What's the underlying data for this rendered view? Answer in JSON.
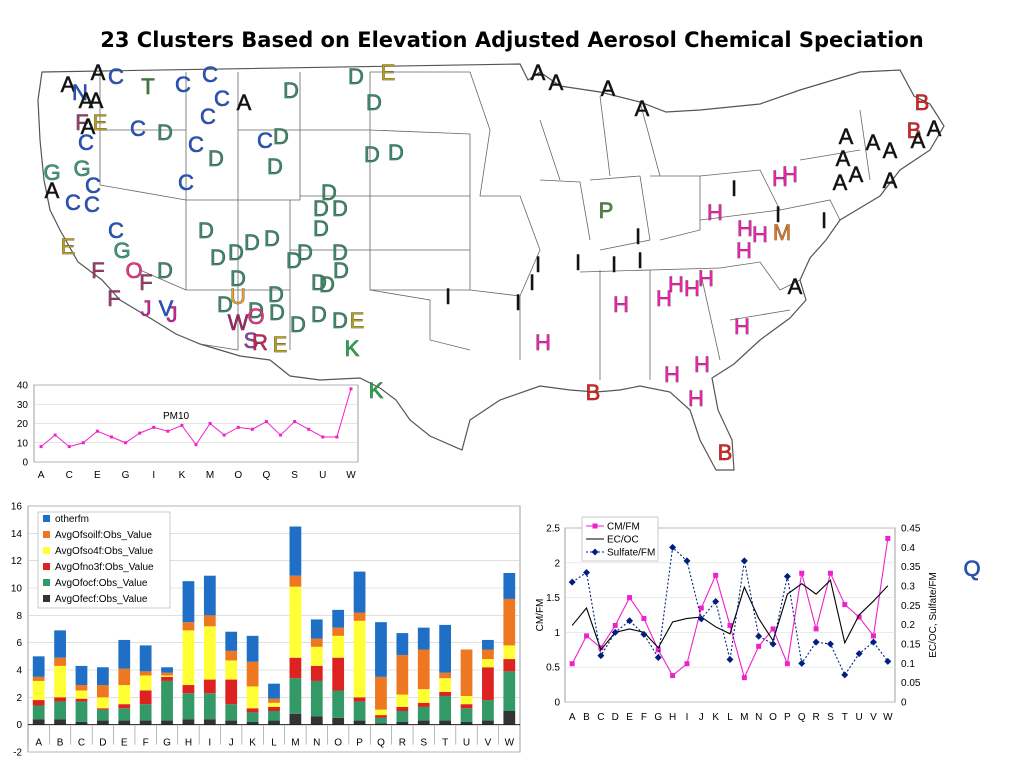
{
  "title": "23 Clusters Based on Elevation Adjusted Aerosol Chemical Speciation",
  "colors": {
    "A": "#111111",
    "B": "#dd2222",
    "C": "#2255cc",
    "D": "#3a8a6a",
    "E": "#b5a020",
    "F": "#9a3a6a",
    "G": "#3a9a7a",
    "H": "#ee22aa",
    "I": "#111111",
    "J": "#cc2299",
    "K": "#22aa44",
    "M": "#dd7722",
    "N": "#2255cc",
    "O": "#ee3388",
    "P": "#4a8a3a",
    "Q": "#2255cc",
    "R": "#cc2255",
    "S": "#8844aa",
    "T": "#3a7a3a",
    "U": "#e8a030",
    "V": "#2255cc",
    "W": "#aa2266"
  },
  "map_labels": [
    {
      "t": "A",
      "x": 68,
      "y": 92
    },
    {
      "t": "A",
      "x": 98,
      "y": 80
    },
    {
      "t": "C",
      "x": 116,
      "y": 84
    },
    {
      "t": "N",
      "x": 80,
      "y": 100
    },
    {
      "t": "A",
      "x": 86,
      "y": 108
    },
    {
      "t": "A",
      "x": 96,
      "y": 108
    },
    {
      "t": "T",
      "x": 148,
      "y": 94
    },
    {
      "t": "C",
      "x": 183,
      "y": 92
    },
    {
      "t": "C",
      "x": 210,
      "y": 82
    },
    {
      "t": "C",
      "x": 222,
      "y": 106
    },
    {
      "t": "A",
      "x": 244,
      "y": 110
    },
    {
      "t": "D",
      "x": 291,
      "y": 98
    },
    {
      "t": "D",
      "x": 356,
      "y": 84
    },
    {
      "t": "E",
      "x": 388,
      "y": 80
    },
    {
      "t": "D",
      "x": 374,
      "y": 110
    },
    {
      "t": "F",
      "x": 82,
      "y": 130
    },
    {
      "t": "E",
      "x": 100,
      "y": 130
    },
    {
      "t": "A",
      "x": 88,
      "y": 134
    },
    {
      "t": "C",
      "x": 86,
      "y": 150
    },
    {
      "t": "C",
      "x": 138,
      "y": 136
    },
    {
      "t": "D",
      "x": 165,
      "y": 140
    },
    {
      "t": "C",
      "x": 208,
      "y": 124
    },
    {
      "t": "C",
      "x": 196,
      "y": 152
    },
    {
      "t": "D",
      "x": 216,
      "y": 166
    },
    {
      "t": "C",
      "x": 265,
      "y": 148
    },
    {
      "t": "D",
      "x": 281,
      "y": 144
    },
    {
      "t": "D",
      "x": 275,
      "y": 174
    },
    {
      "t": "D",
      "x": 372,
      "y": 162
    },
    {
      "t": "D",
      "x": 396,
      "y": 160
    },
    {
      "t": "G",
      "x": 52,
      "y": 180
    },
    {
      "t": "G",
      "x": 82,
      "y": 176
    },
    {
      "t": "C",
      "x": 93,
      "y": 193
    },
    {
      "t": "A",
      "x": 52,
      "y": 198
    },
    {
      "t": "C",
      "x": 73,
      "y": 210
    },
    {
      "t": "C",
      "x": 92,
      "y": 212
    },
    {
      "t": "C",
      "x": 186,
      "y": 190
    },
    {
      "t": "D",
      "x": 329,
      "y": 200
    },
    {
      "t": "D",
      "x": 321,
      "y": 216
    },
    {
      "t": "D",
      "x": 340,
      "y": 216
    },
    {
      "t": "C",
      "x": 116,
      "y": 238
    },
    {
      "t": "G",
      "x": 122,
      "y": 258
    },
    {
      "t": "D",
      "x": 206,
      "y": 238
    },
    {
      "t": "D",
      "x": 321,
      "y": 236
    },
    {
      "t": "E",
      "x": 68,
      "y": 254
    },
    {
      "t": "D",
      "x": 236,
      "y": 260
    },
    {
      "t": "D",
      "x": 252,
      "y": 250
    },
    {
      "t": "D",
      "x": 272,
      "y": 246
    },
    {
      "t": "D",
      "x": 218,
      "y": 265
    },
    {
      "t": "D",
      "x": 305,
      "y": 260
    },
    {
      "t": "D",
      "x": 294,
      "y": 268
    },
    {
      "t": "D",
      "x": 340,
      "y": 260
    },
    {
      "t": "F",
      "x": 98,
      "y": 278
    },
    {
      "t": "O",
      "x": 134,
      "y": 278
    },
    {
      "t": "D",
      "x": 165,
      "y": 278
    },
    {
      "t": "D",
      "x": 238,
      "y": 286
    },
    {
      "t": "D",
      "x": 319,
      "y": 290
    },
    {
      "t": "D",
      "x": 341,
      "y": 278
    },
    {
      "t": "D",
      "x": 327,
      "y": 292
    },
    {
      "t": "F",
      "x": 146,
      "y": 290
    },
    {
      "t": "U",
      "x": 238,
      "y": 304
    },
    {
      "t": "D",
      "x": 225,
      "y": 312
    },
    {
      "t": "D",
      "x": 256,
      "y": 318
    },
    {
      "t": "D",
      "x": 276,
      "y": 302
    },
    {
      "t": "F",
      "x": 114,
      "y": 306
    },
    {
      "t": "J",
      "x": 146,
      "y": 316
    },
    {
      "t": "V",
      "x": 166,
      "y": 316
    },
    {
      "t": "J",
      "x": 172,
      "y": 322
    },
    {
      "t": "D",
      "x": 277,
      "y": 320
    },
    {
      "t": "D",
      "x": 319,
      "y": 322
    },
    {
      "t": "W",
      "x": 238,
      "y": 330
    },
    {
      "t": "O",
      "x": 256,
      "y": 324
    },
    {
      "t": "D",
      "x": 298,
      "y": 332
    },
    {
      "t": "D",
      "x": 340,
      "y": 328
    },
    {
      "t": "E",
      "x": 357,
      "y": 328
    },
    {
      "t": "S",
      "x": 251,
      "y": 348
    },
    {
      "t": "R",
      "x": 260,
      "y": 350
    },
    {
      "t": "E",
      "x": 280,
      "y": 352
    },
    {
      "t": "K",
      "x": 352,
      "y": 356
    },
    {
      "t": "K",
      "x": 376,
      "y": 398
    },
    {
      "t": "A",
      "x": 538,
      "y": 80
    },
    {
      "t": "A",
      "x": 556,
      "y": 90
    },
    {
      "t": "A",
      "x": 608,
      "y": 96
    },
    {
      "t": "A",
      "x": 642,
      "y": 116
    },
    {
      "t": "B",
      "x": 922,
      "y": 110
    },
    {
      "t": "B",
      "x": 914,
      "y": 138
    },
    {
      "t": "A",
      "x": 934,
      "y": 136
    },
    {
      "t": "A",
      "x": 846,
      "y": 144
    },
    {
      "t": "A",
      "x": 873,
      "y": 150
    },
    {
      "t": "A",
      "x": 890,
      "y": 158
    },
    {
      "t": "A",
      "x": 918,
      "y": 148
    },
    {
      "t": "A",
      "x": 843,
      "y": 166
    },
    {
      "t": "A",
      "x": 856,
      "y": 182
    },
    {
      "t": "A",
      "x": 840,
      "y": 190
    },
    {
      "t": "A",
      "x": 890,
      "y": 188
    },
    {
      "t": "H",
      "x": 780,
      "y": 186
    },
    {
      "t": "H",
      "x": 790,
      "y": 182
    },
    {
      "t": "I",
      "x": 734,
      "y": 196
    },
    {
      "t": "P",
      "x": 606,
      "y": 218
    },
    {
      "t": "H",
      "x": 715,
      "y": 220
    },
    {
      "t": "I",
      "x": 778,
      "y": 222
    },
    {
      "t": "I",
      "x": 824,
      "y": 228
    },
    {
      "t": "H",
      "x": 745,
      "y": 236
    },
    {
      "t": "H",
      "x": 760,
      "y": 242
    },
    {
      "t": "M",
      "x": 782,
      "y": 240
    },
    {
      "t": "H",
      "x": 744,
      "y": 258
    },
    {
      "t": "I",
      "x": 638,
      "y": 244
    },
    {
      "t": "I",
      "x": 538,
      "y": 272
    },
    {
      "t": "I",
      "x": 578,
      "y": 270
    },
    {
      "t": "I",
      "x": 614,
      "y": 272
    },
    {
      "t": "I",
      "x": 640,
      "y": 268
    },
    {
      "t": "I",
      "x": 532,
      "y": 290
    },
    {
      "t": "I",
      "x": 448,
      "y": 304
    },
    {
      "t": "I",
      "x": 518,
      "y": 310
    },
    {
      "t": "H",
      "x": 706,
      "y": 286
    },
    {
      "t": "H",
      "x": 676,
      "y": 292
    },
    {
      "t": "H",
      "x": 692,
      "y": 296
    },
    {
      "t": "A",
      "x": 795,
      "y": 294
    },
    {
      "t": "H",
      "x": 664,
      "y": 306
    },
    {
      "t": "H",
      "x": 621,
      "y": 312
    },
    {
      "t": "H",
      "x": 742,
      "y": 334
    },
    {
      "t": "H",
      "x": 543,
      "y": 350
    },
    {
      "t": "H",
      "x": 702,
      "y": 372
    },
    {
      "t": "H",
      "x": 672,
      "y": 382
    },
    {
      "t": "B",
      "x": 593,
      "y": 400
    },
    {
      "t": "H",
      "x": 696,
      "y": 406
    },
    {
      "t": "B",
      "x": 725,
      "y": 460
    },
    {
      "t": "Q",
      "x": 972,
      "y": 576
    }
  ],
  "pm10": {
    "label": "PM10",
    "y_ticks": [
      "0",
      "10",
      "20",
      "30",
      "40"
    ],
    "x_ticks": [
      "A",
      "C",
      "E",
      "G",
      "I",
      "K",
      "M",
      "O",
      "Q",
      "S",
      "U",
      "W"
    ]
  },
  "stack": {
    "y_ticks": [
      "-2",
      "0",
      "2",
      "4",
      "6",
      "8",
      "10",
      "12",
      "14",
      "16"
    ]
  },
  "ratio": {
    "left_axis_title": "CM/FM",
    "right_axis_title": "EC/OC, Sulfate/FM",
    "left_ticks": [
      "0",
      "0.5",
      "1",
      "1.5",
      "2",
      "2.5"
    ],
    "right_ticks": [
      "0",
      "0.05",
      "0.1",
      "0.15",
      "0.2",
      "0.25",
      "0.3",
      "0.35",
      "0.4",
      "0.45"
    ]
  },
  "chart_data": [
    {
      "type": "line",
      "title": "PM10",
      "x": [
        "A",
        "B",
        "C",
        "D",
        "E",
        "F",
        "G",
        "H",
        "I",
        "J",
        "K",
        "L",
        "M",
        "N",
        "O",
        "P",
        "Q",
        "R",
        "S",
        "T",
        "U",
        "V",
        "W"
      ],
      "ylim": [
        0,
        40
      ],
      "series": [
        {
          "name": "PM10",
          "color": "#ee22cc",
          "values": [
            8,
            14,
            8,
            10,
            16,
            13,
            10,
            15,
            18,
            16,
            19,
            9,
            20,
            14,
            18,
            17,
            21,
            14,
            21,
            17,
            13,
            13,
            38
          ]
        }
      ]
    },
    {
      "type": "bar",
      "stacked": true,
      "categories": [
        "A",
        "B",
        "C",
        "D",
        "E",
        "F",
        "G",
        "H",
        "I",
        "J",
        "K",
        "L",
        "M",
        "N",
        "O",
        "P",
        "Q",
        "R",
        "S",
        "T",
        "U",
        "V",
        "W"
      ],
      "ylim": [
        -2,
        16
      ],
      "legend_position": "top-left",
      "series": [
        {
          "name": "AvgOfecf:Obs_Value",
          "color": "#333333",
          "values": [
            0.4,
            0.4,
            0.2,
            0.3,
            0.3,
            0.3,
            0.3,
            0.4,
            0.4,
            0.3,
            0.2,
            0.3,
            0.8,
            0.6,
            0.5,
            0.3,
            0.1,
            0.2,
            0.3,
            0.3,
            0.2,
            0.3,
            1.0
          ]
        },
        {
          "name": "AvgOfocf:Obs_Value",
          "color": "#339966",
          "values": [
            1.0,
            1.3,
            1.5,
            0.8,
            0.9,
            1.2,
            2.9,
            1.9,
            1.9,
            1.2,
            0.7,
            0.7,
            2.6,
            2.6,
            2.0,
            1.4,
            0.4,
            0.8,
            1.0,
            1.8,
            1.0,
            1.5,
            2.9
          ]
        },
        {
          "name": "AvgOfno3f:Obs_Value",
          "color": "#dd2222",
          "values": [
            0.4,
            0.3,
            0.2,
            0.1,
            0.3,
            1.0,
            0.3,
            0.6,
            1.0,
            1.8,
            0.3,
            0.3,
            1.5,
            1.1,
            2.4,
            0.3,
            0.2,
            0.3,
            0.3,
            0.3,
            0.3,
            2.4,
            0.9
          ]
        },
        {
          "name": "AvgOfso4f:Obs_Value",
          "color": "#ffff33",
          "values": [
            1.4,
            2.3,
            0.6,
            0.8,
            1.4,
            1.1,
            0.1,
            4.0,
            3.9,
            1.4,
            1.6,
            0.3,
            5.2,
            1.4,
            1.6,
            5.6,
            0.4,
            0.9,
            1.0,
            1.0,
            0.6,
            0.6,
            1.0
          ]
        },
        {
          "name": "AvgOfsoilf:Obs_Value",
          "color": "#ee7722",
          "values": [
            0.3,
            0.6,
            0.4,
            0.9,
            1.2,
            0.3,
            0.2,
            0.6,
            0.8,
            0.7,
            1.8,
            0.3,
            0.8,
            0.6,
            0.6,
            0.6,
            2.4,
            2.9,
            2.9,
            0.4,
            3.4,
            0.7,
            3.4
          ]
        },
        {
          "name": "otherfm",
          "color": "#1f6fc7",
          "values": [
            1.5,
            2.0,
            1.4,
            1.3,
            2.1,
            1.9,
            0.4,
            3.0,
            2.9,
            1.4,
            1.9,
            1.1,
            3.6,
            1.4,
            1.3,
            3.0,
            4.0,
            1.6,
            1.6,
            3.5,
            0.0,
            0.7,
            1.9
          ]
        }
      ]
    },
    {
      "type": "line",
      "categories": [
        "A",
        "B",
        "C",
        "D",
        "E",
        "F",
        "G",
        "H",
        "I",
        "J",
        "K",
        "L",
        "M",
        "N",
        "O",
        "P",
        "Q",
        "R",
        "S",
        "T",
        "U",
        "V",
        "W"
      ],
      "ylim": [
        0,
        2.5
      ],
      "y2lim": [
        0,
        0.45
      ],
      "legend_position": "top-left",
      "series": [
        {
          "name": "CM/FM",
          "axis": "left",
          "color": "#ee22cc",
          "marker": "square",
          "values": [
            0.55,
            0.95,
            0.78,
            1.1,
            1.5,
            1.2,
            0.75,
            0.38,
            0.55,
            1.35,
            1.82,
            1.1,
            0.35,
            0.8,
            1.05,
            0.55,
            1.85,
            1.05,
            1.85,
            1.4,
            1.22,
            0.95,
            2.35
          ]
        },
        {
          "name": "EC/OC",
          "axis": "left",
          "color": "#000000",
          "marker": "line",
          "values": [
            1.1,
            1.35,
            0.75,
            1.0,
            1.05,
            1.0,
            0.78,
            1.15,
            1.2,
            1.22,
            1.08,
            0.98,
            1.65,
            1.2,
            0.88,
            1.55,
            1.7,
            1.55,
            1.75,
            0.85,
            1.25,
            1.45,
            1.67
          ]
        },
        {
          "name": "Sulfate/FM",
          "axis": "right",
          "color": "#001f80",
          "marker": "diamond",
          "dash": true,
          "values": [
            0.31,
            0.335,
            0.12,
            0.18,
            0.21,
            0.175,
            0.115,
            0.4,
            0.365,
            0.215,
            0.26,
            0.11,
            0.365,
            0.17,
            0.15,
            0.325,
            0.1,
            0.155,
            0.15,
            0.07,
            0.125,
            0.155,
            0.105
          ]
        }
      ]
    }
  ]
}
